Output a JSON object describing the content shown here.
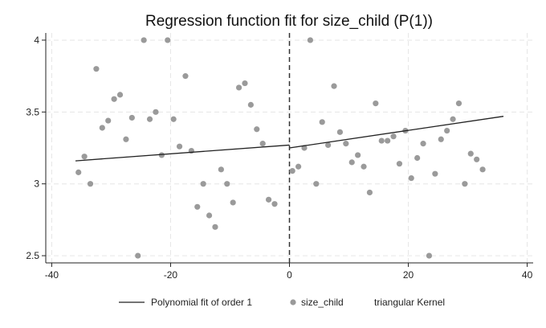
{
  "chart_data": {
    "type": "scatter",
    "title": "Regression function fit for size_child (P(1))",
    "xlabel": "",
    "ylabel": "",
    "xlim": [
      -41,
      41
    ],
    "ylim": [
      2.45,
      4.05
    ],
    "x_ticks": [
      -40,
      -20,
      0,
      20,
      40
    ],
    "y_ticks": [
      2.5,
      3,
      3.5,
      4
    ],
    "x_tick_labels": [
      "-40",
      "-20",
      "0",
      "20",
      "40"
    ],
    "y_tick_labels": [
      "2.5",
      "3",
      "3.5",
      "4"
    ],
    "grid": true,
    "cutoff": 0,
    "legend_position": "bottom",
    "legend": [
      {
        "label": "Polynomial fit of order 1",
        "kind": "line"
      },
      {
        "label": "size_child",
        "kind": "marker"
      },
      {
        "label": "triangular Kernel",
        "kind": "text"
      }
    ],
    "series": [
      {
        "name": "size_child",
        "kind": "scatter",
        "color": "#9a9a9a",
        "points": [
          [
            -35.5,
            3.08
          ],
          [
            -34.5,
            3.19
          ],
          [
            -33.5,
            3.0
          ],
          [
            -32.5,
            3.8
          ],
          [
            -31.5,
            3.39
          ],
          [
            -30.5,
            3.44
          ],
          [
            -29.5,
            3.59
          ],
          [
            -28.5,
            3.62
          ],
          [
            -27.5,
            3.31
          ],
          [
            -26.5,
            3.46
          ],
          [
            -25.5,
            2.5
          ],
          [
            -24.5,
            4.0
          ],
          [
            -23.5,
            3.45
          ],
          [
            -22.5,
            3.5
          ],
          [
            -21.5,
            3.2
          ],
          [
            -20.5,
            4.0
          ],
          [
            -19.5,
            3.45
          ],
          [
            -18.5,
            3.26
          ],
          [
            -17.5,
            3.75
          ],
          [
            -16.5,
            3.23
          ],
          [
            -15.5,
            2.84
          ],
          [
            -14.5,
            3.0
          ],
          [
            -13.5,
            2.78
          ],
          [
            -12.5,
            2.7
          ],
          [
            -11.5,
            3.1
          ],
          [
            -10.5,
            3.0
          ],
          [
            -9.5,
            2.87
          ],
          [
            -8.5,
            3.67
          ],
          [
            -7.5,
            3.7
          ],
          [
            -6.5,
            3.55
          ],
          [
            -5.5,
            3.38
          ],
          [
            -4.5,
            3.28
          ],
          [
            -3.5,
            2.89
          ],
          [
            -2.5,
            2.86
          ],
          [
            0.5,
            3.09
          ],
          [
            1.5,
            3.12
          ],
          [
            2.5,
            3.25
          ],
          [
            3.5,
            4.0
          ],
          [
            4.5,
            3.0
          ],
          [
            5.5,
            3.43
          ],
          [
            6.5,
            3.27
          ],
          [
            7.5,
            3.68
          ],
          [
            8.5,
            3.36
          ],
          [
            9.5,
            3.28
          ],
          [
            10.5,
            3.15
          ],
          [
            11.5,
            3.2
          ],
          [
            12.5,
            3.12
          ],
          [
            13.5,
            2.94
          ],
          [
            14.5,
            3.56
          ],
          [
            15.5,
            3.3
          ],
          [
            16.5,
            3.3
          ],
          [
            17.5,
            3.33
          ],
          [
            18.5,
            3.14
          ],
          [
            19.5,
            3.37
          ],
          [
            20.5,
            3.04
          ],
          [
            21.5,
            3.18
          ],
          [
            22.5,
            3.28
          ],
          [
            23.5,
            2.5
          ],
          [
            24.5,
            3.07
          ],
          [
            25.5,
            3.31
          ],
          [
            26.5,
            3.37
          ],
          [
            27.5,
            3.45
          ],
          [
            28.5,
            3.56
          ],
          [
            29.5,
            3.0
          ],
          [
            30.5,
            3.21
          ],
          [
            31.5,
            3.17
          ],
          [
            32.5,
            3.1
          ]
        ]
      },
      {
        "name": "Polynomial fit of order 1",
        "kind": "line",
        "color": "#222222",
        "segments": [
          [
            [
              -36,
              3.16
            ],
            [
              0,
              3.27
            ]
          ],
          [
            [
              0,
              3.25
            ],
            [
              36,
              3.47
            ]
          ]
        ]
      }
    ]
  }
}
